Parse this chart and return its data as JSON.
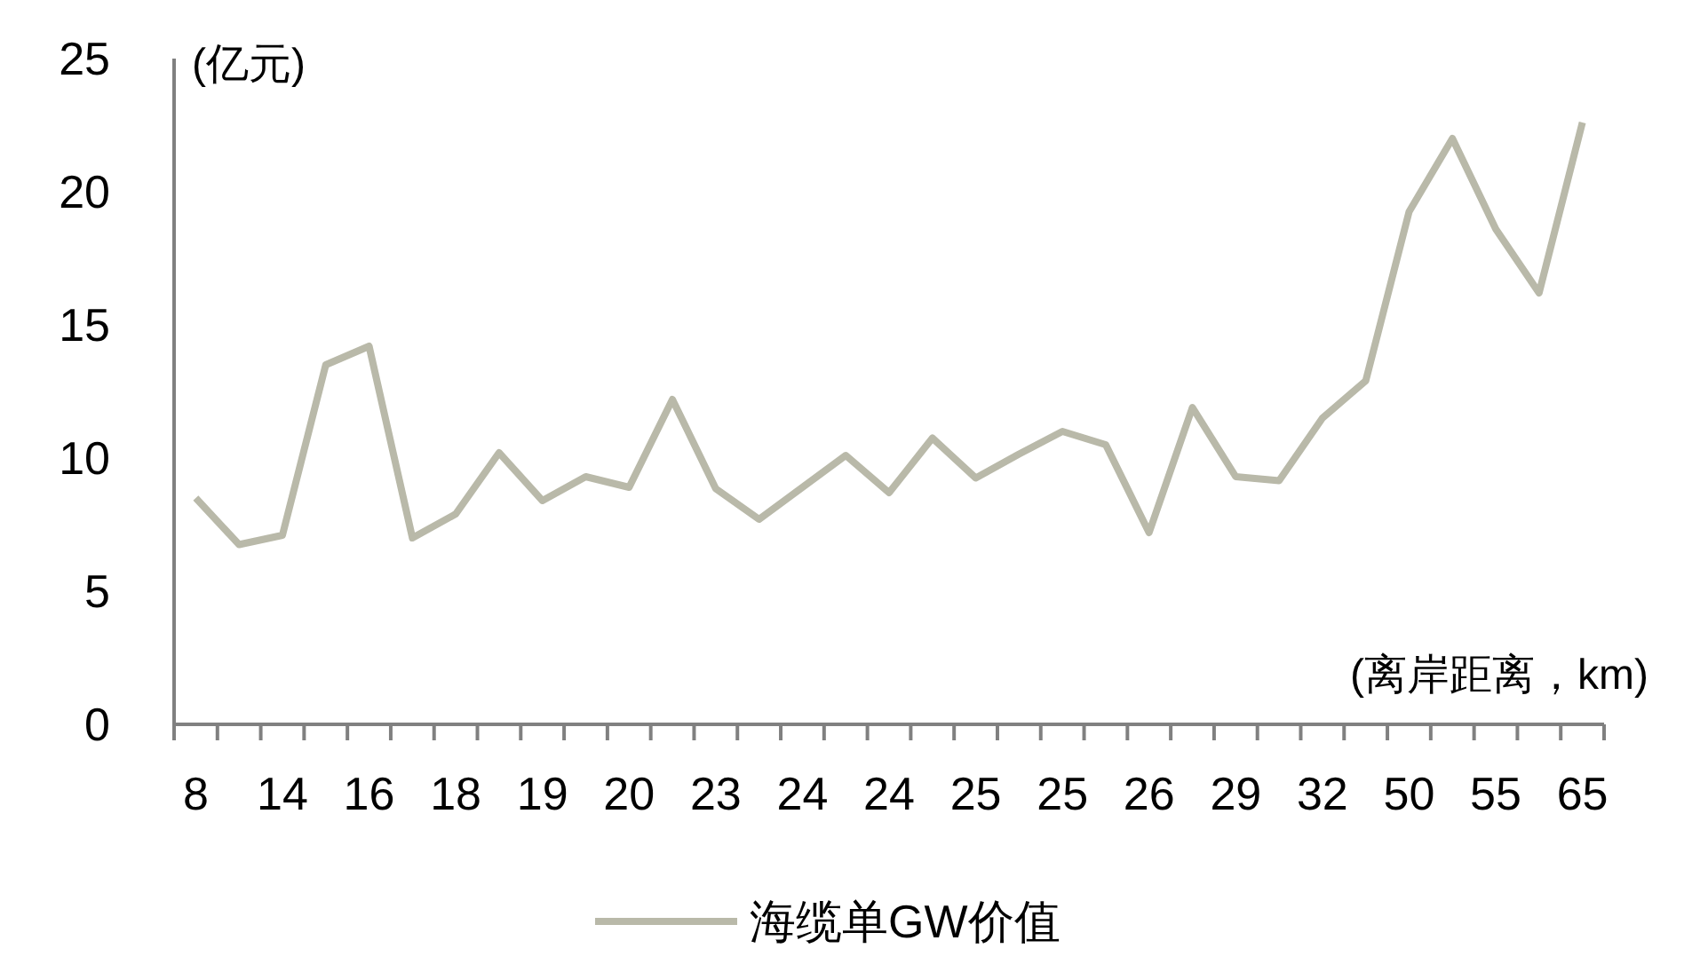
{
  "chart_data": {
    "type": "line",
    "ylabel": "(亿元)",
    "xlabel": "(离岸距离，km)",
    "categories": [
      "8",
      null,
      "14",
      null,
      "16",
      null,
      "18",
      null,
      "19",
      null,
      "20",
      null,
      "23",
      null,
      "24",
      null,
      "24",
      null,
      "25",
      null,
      "25",
      null,
      "26",
      null,
      "29",
      null,
      "32",
      null,
      "50",
      null,
      "55",
      null,
      "65"
    ],
    "series": [
      {
        "name": "海缆单GW价值",
        "color": "#b9b9a9",
        "values": [
          8.5,
          6.75,
          7.1,
          13.5,
          14.2,
          7.0,
          7.9,
          10.2,
          8.4,
          9.3,
          8.9,
          12.2,
          8.85,
          7.7,
          8.9,
          10.1,
          8.7,
          10.75,
          9.25,
          10.15,
          11.0,
          10.5,
          7.2,
          11.9,
          9.3,
          9.15,
          11.5,
          12.9,
          19.25,
          22.0,
          18.6,
          16.2,
          22.6
        ]
      }
    ],
    "ylim": [
      0,
      25
    ],
    "yticks": [
      0,
      5,
      10,
      15,
      20,
      25
    ],
    "legend": "bottom"
  }
}
